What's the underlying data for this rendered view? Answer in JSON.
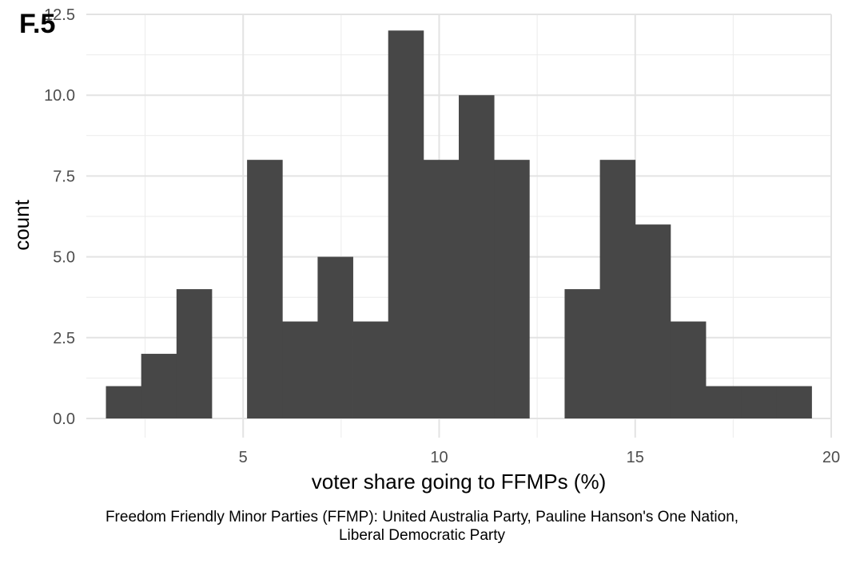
{
  "chart_data": {
    "type": "bar",
    "tag": "F.5",
    "xlabel": "voter share going to FFMPs (%)",
    "ylabel": "count",
    "xlim": [
      1,
      20
    ],
    "ylim": [
      0,
      12.5
    ],
    "x_ticks": [
      5,
      10,
      15,
      20
    ],
    "y_ticks": [
      0.0,
      2.5,
      5.0,
      7.5,
      10.0,
      12.5
    ],
    "x_tick_labels": [
      "5",
      "10",
      "15",
      "20"
    ],
    "y_tick_labels": [
      "0.0",
      "2.5",
      "5.0",
      "7.5",
      "10.0",
      "12.5"
    ],
    "grid": true,
    "bar_color": "#474747",
    "bins": [
      {
        "x0": 1.5,
        "x1": 2.4,
        "count": 1
      },
      {
        "x0": 2.4,
        "x1": 3.3,
        "count": 2
      },
      {
        "x0": 3.3,
        "x1": 4.2,
        "count": 4
      },
      {
        "x0": 4.2,
        "x1": 5.1,
        "count": 0
      },
      {
        "x0": 5.1,
        "x1": 6.0,
        "count": 8
      },
      {
        "x0": 6.0,
        "x1": 6.9,
        "count": 3
      },
      {
        "x0": 6.9,
        "x1": 7.8,
        "count": 5
      },
      {
        "x0": 7.8,
        "x1": 8.7,
        "count": 3
      },
      {
        "x0": 8.7,
        "x1": 9.6,
        "count": 12
      },
      {
        "x0": 9.6,
        "x1": 10.5,
        "count": 8
      },
      {
        "x0": 10.5,
        "x1": 11.4,
        "count": 10
      },
      {
        "x0": 11.4,
        "x1": 12.3,
        "count": 8
      },
      {
        "x0": 12.3,
        "x1": 13.2,
        "count": 0
      },
      {
        "x0": 13.2,
        "x1": 14.1,
        "count": 4
      },
      {
        "x0": 14.1,
        "x1": 15.0,
        "count": 8
      },
      {
        "x0": 15.0,
        "x1": 15.9,
        "count": 6
      },
      {
        "x0": 15.9,
        "x1": 16.8,
        "count": 3
      },
      {
        "x0": 16.8,
        "x1": 17.7,
        "count": 1
      },
      {
        "x0": 17.7,
        "x1": 18.6,
        "count": 1
      },
      {
        "x0": 18.6,
        "x1": 19.5,
        "count": 1
      }
    ],
    "caption": [
      "Freedom Friendly Minor Parties (FFMP): United Australia Party, Pauline Hanson's One Nation,",
      "Liberal Democratic Party"
    ]
  }
}
